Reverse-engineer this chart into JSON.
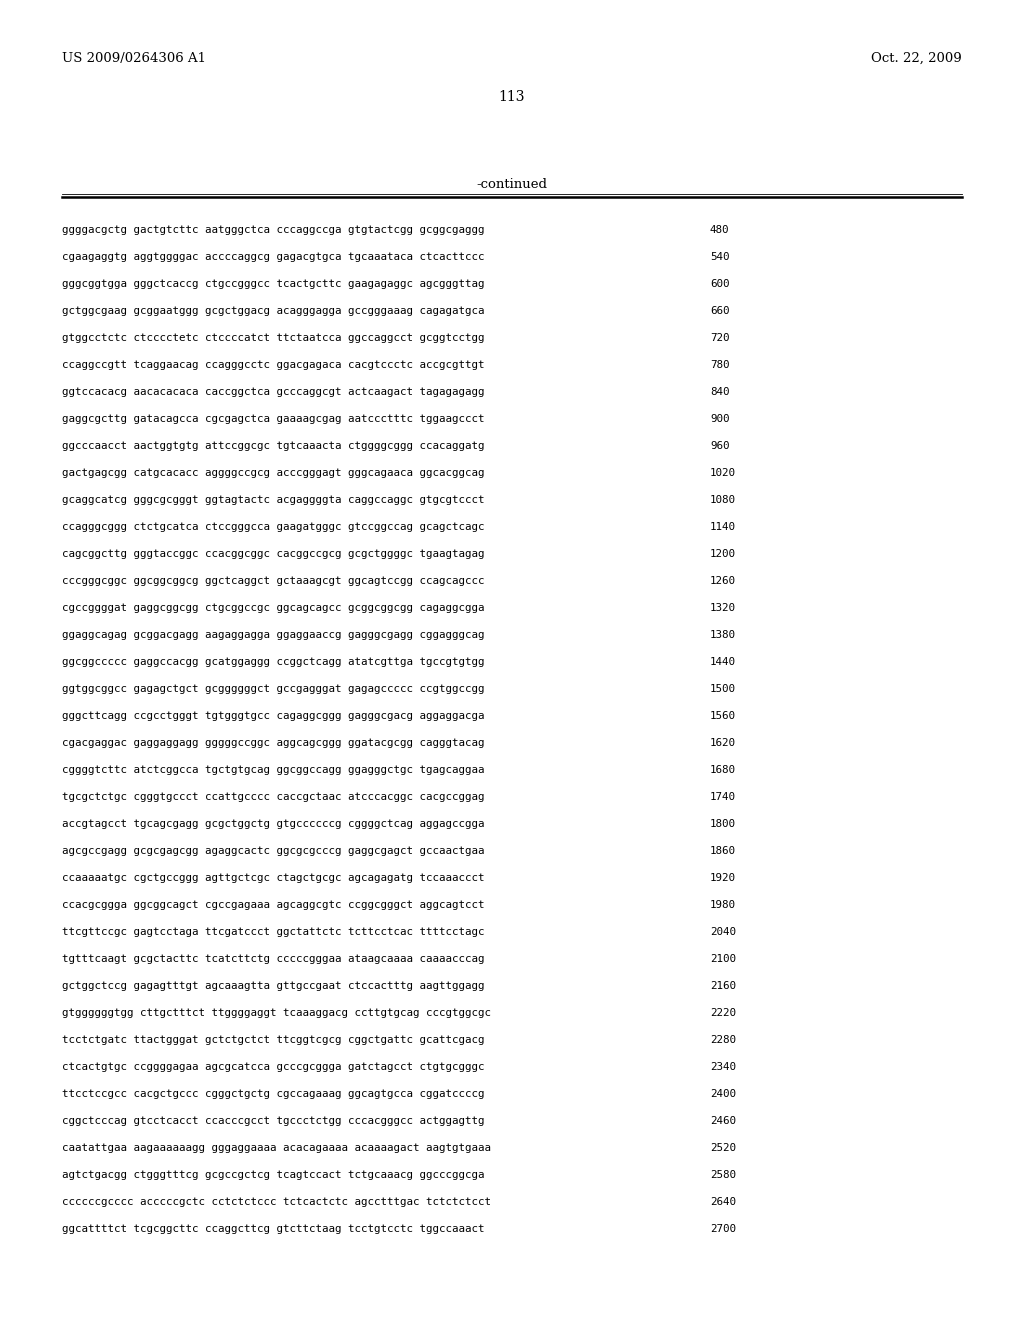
{
  "header_left": "US 2009/0264306 A1",
  "header_right": "Oct. 22, 2009",
  "page_number": "113",
  "continued_label": "-continued",
  "background_color": "#ffffff",
  "text_color": "#000000",
  "sequence_lines": [
    {
      "seq": "ggggacgctg gactgtcttc aatgggctca cccaggccga gtgtactcgg gcggcgaggg",
      "num": "480"
    },
    {
      "seq": "cgaagaggtg aggtggggac accccaggcg gagacgtgca tgcaaataca ctcacttccc",
      "num": "540"
    },
    {
      "seq": "gggcggtgga gggctcaccg ctgccgggcc tcactgcttc gaagagaggc agcgggttag",
      "num": "600"
    },
    {
      "seq": "gctggcgaag gcggaatggg gcgctggacg acagggagga gccgggaaag cagagatgca",
      "num": "660"
    },
    {
      "seq": "gtggcctctc ctcccctetc ctccccatct ttctaatcca ggccaggcct gcggtcctgg",
      "num": "720"
    },
    {
      "seq": "ccaggccgtt tcaggaacag ccagggcctc ggacgagaca cacgtccctc accgcgttgt",
      "num": "780"
    },
    {
      "seq": "ggtccacacg aacacacaca caccggctca gcccaggcgt actcaagact tagagagagg",
      "num": "840"
    },
    {
      "seq": "gaggcgcttg gatacagcca cgcgagctca gaaaagcgag aatccctttc tggaagccct",
      "num": "900"
    },
    {
      "seq": "ggcccaacct aactggtgtg attccggcgc tgtcaaacta ctggggcggg ccacaggatg",
      "num": "960"
    },
    {
      "seq": "gactgagcgg catgcacacc aggggccgcg acccgggagt gggcagaaca ggcacggcag",
      "num": "1020"
    },
    {
      "seq": "gcaggcatcg gggcgcgggt ggtagtactc acgaggggta caggccaggc gtgcgtccct",
      "num": "1080"
    },
    {
      "seq": "ccagggcggg ctctgcatca ctccgggcca gaagatgggc gtccggccag gcagctcagc",
      "num": "1140"
    },
    {
      "seq": "cagcggcttg gggtaccggc ccacggcggc cacggccgcg gcgctggggc tgaagtagag",
      "num": "1200"
    },
    {
      "seq": "cccgggcggc ggcggcggcg ggctcaggct gctaaagcgt ggcagtccgg ccagcagccc",
      "num": "1260"
    },
    {
      "seq": "cgccggggat gaggcggcgg ctgcggccgc ggcagcagcc gcggcggcgg cagaggcgga",
      "num": "1320"
    },
    {
      "seq": "ggaggcagag gcggacgagg aagaggagga ggaggaaccg gagggcgagg cggagggcag",
      "num": "1380"
    },
    {
      "seq": "ggcggccccc gaggccacgg gcatggaggg ccggctcagg atatcgttga tgccgtgtgg",
      "num": "1440"
    },
    {
      "seq": "ggtggcggcc gagagctgct gcggggggct gccgagggat gagagccccc ccgtggccgg",
      "num": "1500"
    },
    {
      "seq": "gggcttcagg ccgcctgggt tgtgggtgcc cagaggcggg gagggcgacg aggaggacga",
      "num": "1560"
    },
    {
      "seq": "cgacgaggac gaggaggagg gggggccggc aggcagcggg ggatacgcgg cagggtacag",
      "num": "1620"
    },
    {
      "seq": "cggggtcttc atctcggcca tgctgtgcag ggcggccagg ggagggctgc tgagcaggaa",
      "num": "1680"
    },
    {
      "seq": "tgcgctctgc cgggtgccct ccattgcccc caccgctaac atcccacggc cacgccggag",
      "num": "1740"
    },
    {
      "seq": "accgtagcct tgcagcgagg gcgctggctg gtgccccccg cggggctcag aggagccgga",
      "num": "1800"
    },
    {
      "seq": "agcgccgagg gcgcgagcgg agaggcactc ggcgcgcccg gaggcgagct gccaactgaa",
      "num": "1860"
    },
    {
      "seq": "ccaaaaatgc cgctgccggg agttgctcgc ctagctgcgc agcagagatg tccaaaccct",
      "num": "1920"
    },
    {
      "seq": "ccacgcggga ggcggcagct cgccgagaaa agcaggcgtc ccggcgggct aggcagtcct",
      "num": "1980"
    },
    {
      "seq": "ttcgttccgc gagtcctaga ttcgatccct ggctattctc tcttcctcac ttttcctagc",
      "num": "2040"
    },
    {
      "seq": "tgtttcaagt gcgctacttc tcatcttctg cccccgggaa ataagcaaaa caaaacccag",
      "num": "2100"
    },
    {
      "seq": "gctggctccg gagagtttgt agcaaagtta gttgccgaat ctccactttg aagttggagg",
      "num": "2160"
    },
    {
      "seq": "gtggggggtgg cttgctttct ttggggaggt tcaaaggacg ccttgtgcag cccgtggcgc",
      "num": "2220"
    },
    {
      "seq": "tcctctgatc ttactgggat gctctgctct ttcggtcgcg cggctgattc gcattcgacg",
      "num": "2280"
    },
    {
      "seq": "ctcactgtgc ccggggagaa agcgcatcca gcccgcggga gatctagcct ctgtgcgggc",
      "num": "2340"
    },
    {
      "seq": "ttcctccgcc cacgctgccc cgggctgctg cgccagaaag ggcagtgcca cggatccccg",
      "num": "2400"
    },
    {
      "seq": "cggctcccag gtcctcacct ccacccgcct tgccctctgg cccacgggcc actggagttg",
      "num": "2460"
    },
    {
      "seq": "caatattgaa aagaaaaaagg gggaggaaaa acacagaaaa acaaaagact aagtgtgaaa",
      "num": "2520"
    },
    {
      "seq": "agtctgacgg ctgggtttcg gcgccgctcg tcagtccact tctgcaaacg ggcccggcga",
      "num": "2580"
    },
    {
      "seq": "ccccccgcccc acccccgctc cctctctccc tctcactctc agcctttgac tctctctcct",
      "num": "2640"
    },
    {
      "seq": "ggcattttct tcgcggcttc ccaggcttcg gtcttctaag tcctgtcctc tggccaaact",
      "num": "2700"
    }
  ]
}
